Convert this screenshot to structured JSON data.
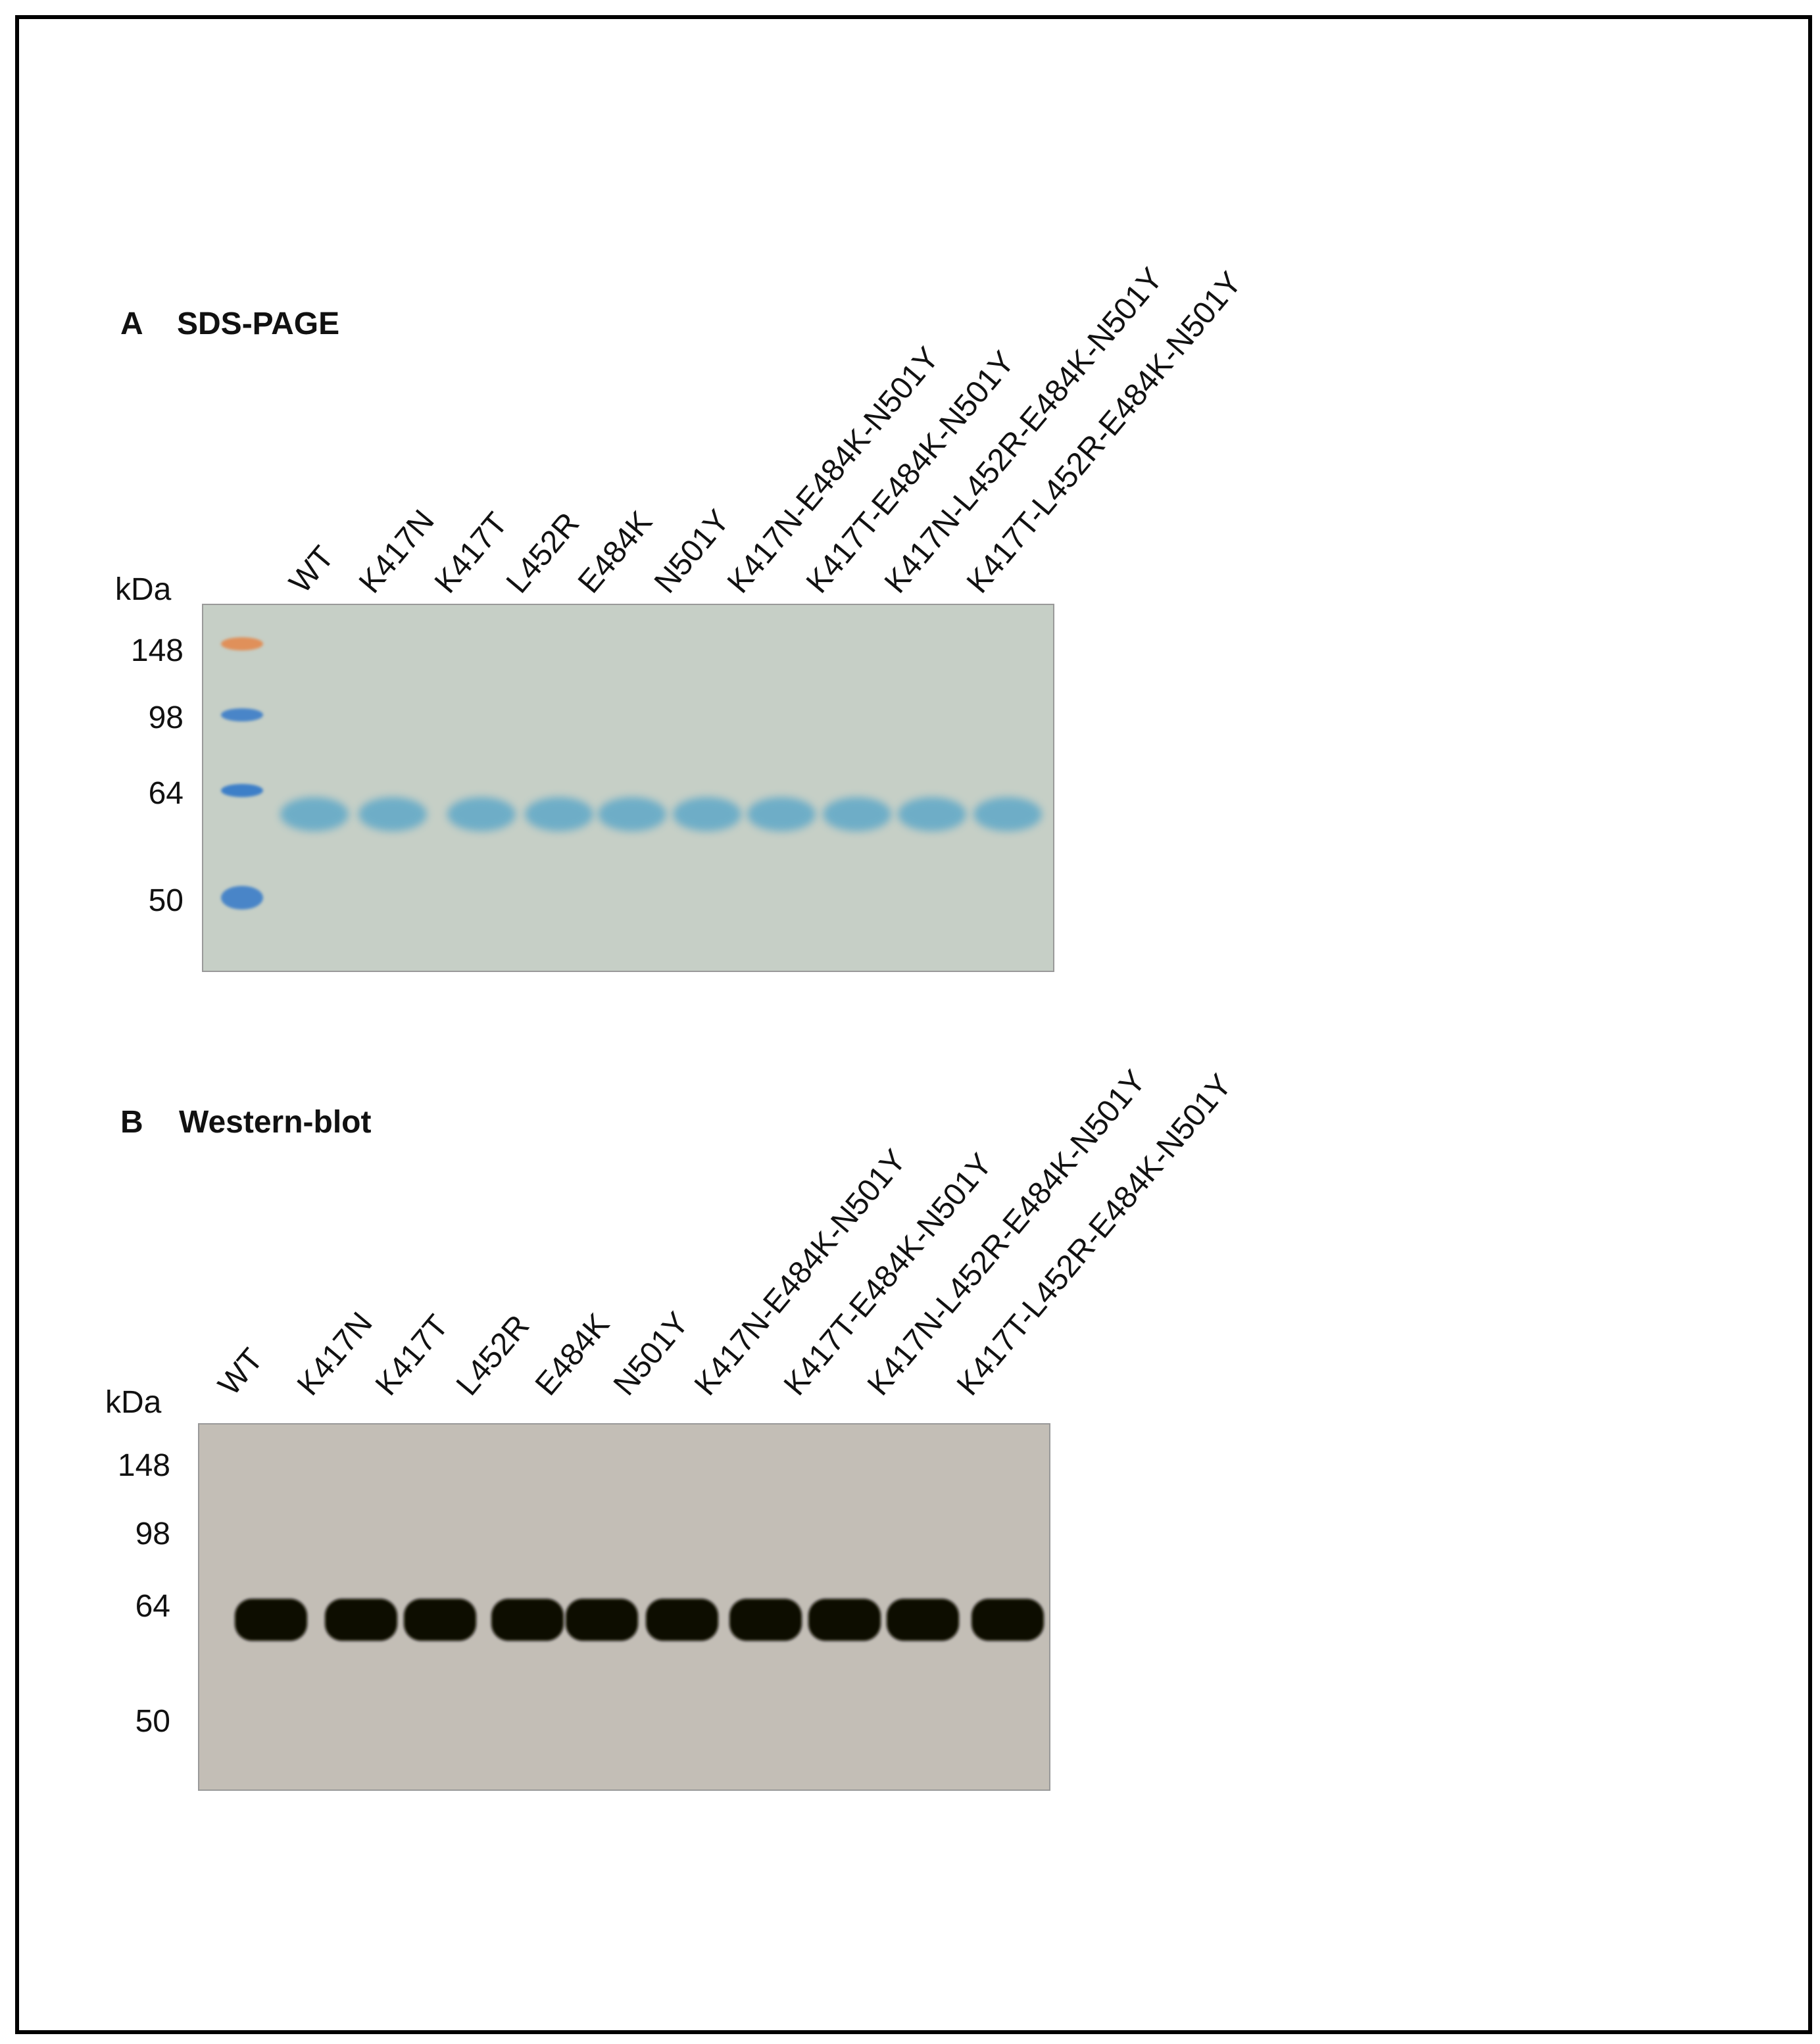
{
  "panels": [
    {
      "letter": "A",
      "title": "SDS-PAGE",
      "unit": "kDa",
      "markers": [
        "148",
        "98",
        "64",
        "50"
      ],
      "lanes": [
        "WT",
        "K417N",
        "K417T",
        "L452R",
        "E484K",
        "N501Y",
        "K417N-E484K-N501Y",
        "K417T-E484K-N501Y",
        "K417N-L452R-E484K-N501Y",
        "K417T-L452R-E484K-N501Y"
      ]
    },
    {
      "letter": "B",
      "title": "Western-blot",
      "unit": "kDa",
      "markers": [
        "148",
        "98",
        "64",
        "50"
      ],
      "lanes": [
        "WT",
        "K417N",
        "K417T",
        "L452R",
        "E484K",
        "N501Y",
        "K417N-E484K-N501Y",
        "K417T-E484K-N501Y",
        "K417N-L452R-E484K-N501Y",
        "K417T-L452R-E484K-N501Y"
      ]
    }
  ]
}
